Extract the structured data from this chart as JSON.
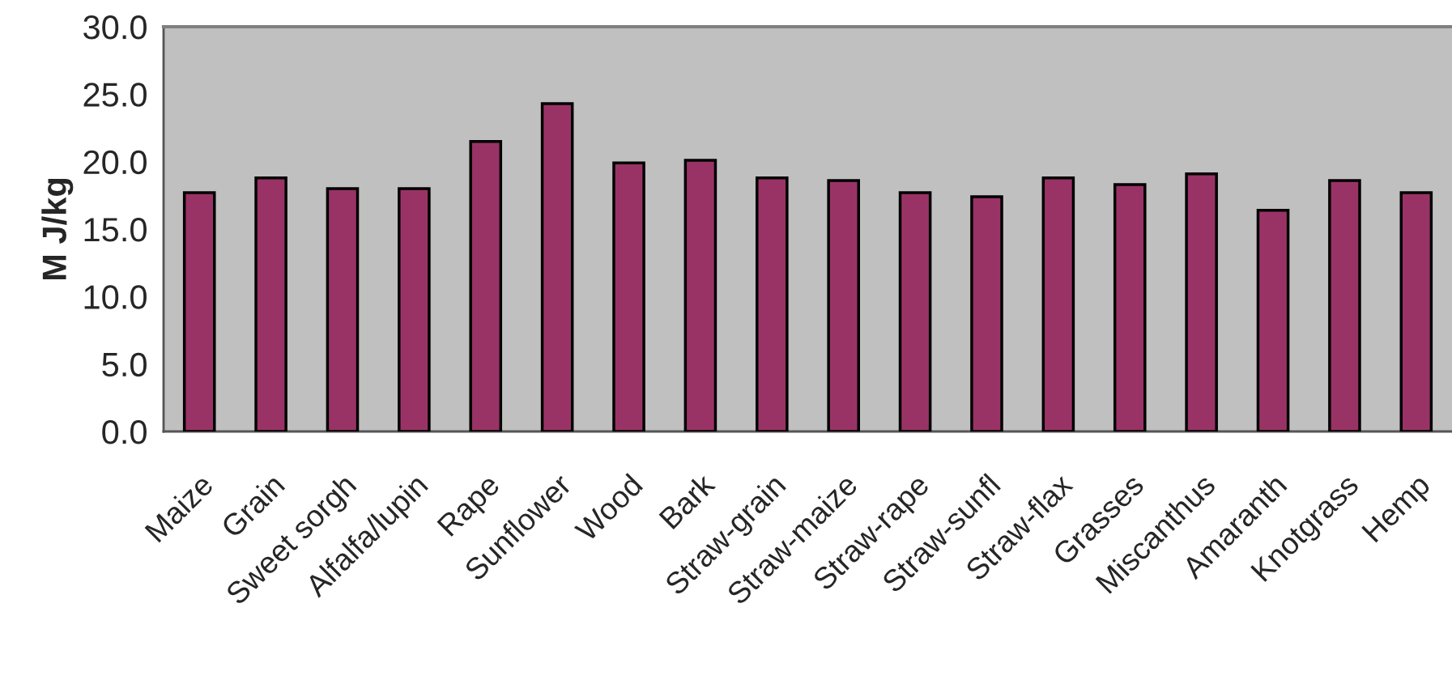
{
  "chart_data": {
    "type": "bar",
    "ylabel": "M J/kg",
    "categories": [
      "Maize",
      "Grain",
      "Sweet sorgh",
      "Alfalfa/lupin",
      "Rape",
      "Sunflower",
      "Wood",
      "Bark",
      "Straw-grain",
      "Straw-maize",
      "Straw-rape",
      "Straw-sunfl",
      "Straw-flax",
      "Grasses",
      "Miscanthus",
      "Amaranth",
      "Knotgrass",
      "Hemp"
    ],
    "values": [
      17.7,
      18.8,
      18.0,
      18.0,
      21.5,
      24.3,
      19.9,
      20.1,
      18.8,
      18.6,
      17.7,
      17.4,
      18.8,
      18.3,
      19.1,
      16.4,
      18.6,
      17.7
    ],
    "color": "#993366",
    "ylim": [
      0,
      30
    ],
    "yticks": [
      {
        "value": 0,
        "label": "0.0"
      },
      {
        "value": 5,
        "label": "5.0"
      },
      {
        "value": 10,
        "label": "10.0"
      },
      {
        "value": 15,
        "label": "15.0"
      },
      {
        "value": 20,
        "label": "20.0"
      },
      {
        "value": 25,
        "label": "25.0"
      },
      {
        "value": 30,
        "label": "30.0"
      }
    ],
    "grid": false,
    "legend": false
  }
}
